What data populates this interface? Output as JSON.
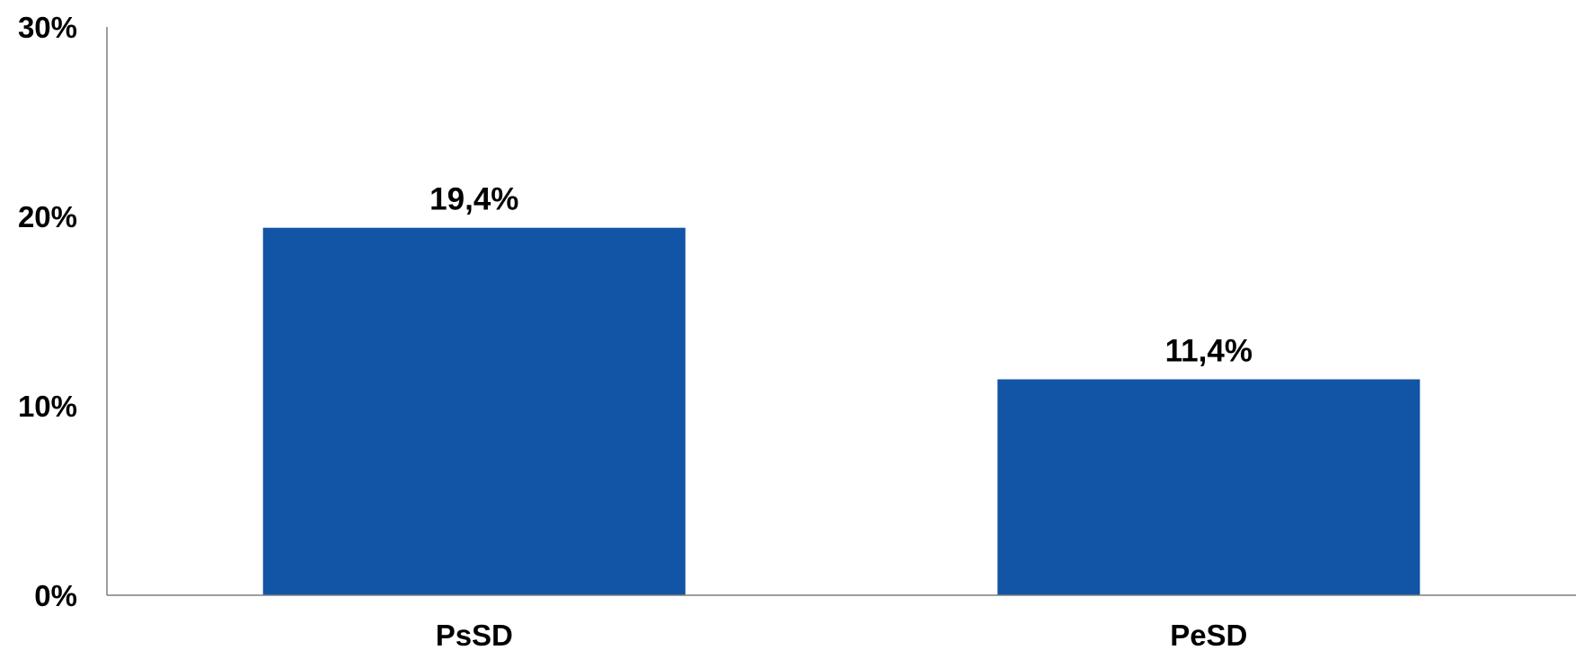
{
  "chart_data": {
    "type": "bar",
    "title": "",
    "xlabel": "",
    "ylabel": "",
    "categories": [
      "PsSD",
      "PeSD"
    ],
    "values": [
      19.4,
      11.4
    ],
    "data_labels": [
      "19,4%",
      "11,4%"
    ],
    "ylim": [
      0,
      30
    ],
    "yticks": [
      0,
      10,
      20,
      30
    ],
    "ytick_labels": [
      "0%",
      "10%",
      "20%",
      "30%"
    ],
    "grid": false,
    "legend": "none",
    "bar_color": "#1254A5",
    "axis_color": "#7F7F7F"
  }
}
